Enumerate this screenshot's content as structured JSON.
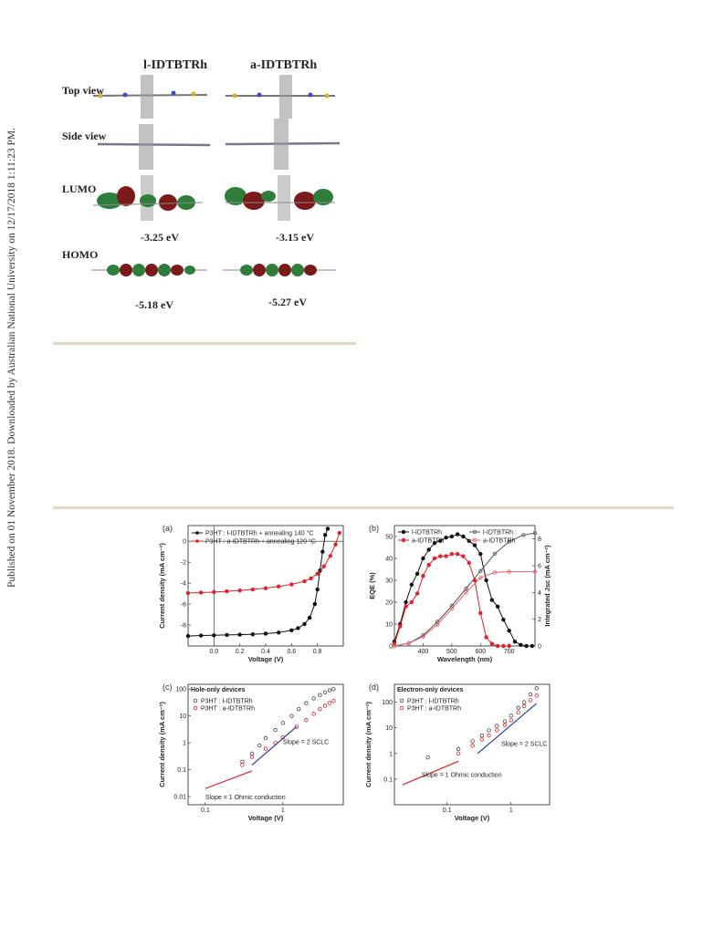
{
  "side_note": "Published on 01 November 2018. Downloaded by Australian National University on 12/17/2018 1:11:23 PM.",
  "mo_figure": {
    "headers": [
      "l-IDTBTRh",
      "a-IDTBTRh"
    ],
    "rows": [
      "Top view",
      "Side view",
      "LUMO",
      "HOMO"
    ],
    "lumo": [
      "-3.25 eV",
      "-3.15 eV"
    ],
    "homo": [
      "-5.18 eV",
      "-5.27 eV"
    ]
  },
  "chart_data": [
    {
      "type": "line",
      "panel": "(a)",
      "xlabel": "Voltage (V)",
      "ylabel": "Current density (mA cm⁻²)",
      "xlim": [
        -0.2,
        1.0
      ],
      "ylim": [
        -10,
        1.5
      ],
      "xticks": [
        "0.0",
        "0.2",
        "0.4",
        "0.6",
        "0.8"
      ],
      "yticks": [
        "-8",
        "-6",
        "-4",
        "-2",
        "0"
      ],
      "legend": "top-left",
      "series": [
        {
          "name": "P3HT : l-IDTBTRh + annealing 140 °C",
          "color": "#111111",
          "x": [
            -0.2,
            -0.1,
            0,
            0.1,
            0.2,
            0.3,
            0.4,
            0.5,
            0.6,
            0.65,
            0.7,
            0.74,
            0.78,
            0.8,
            0.82,
            0.84,
            0.86,
            0.88
          ],
          "y": [
            -9.05,
            -9.0,
            -8.98,
            -8.95,
            -8.92,
            -8.88,
            -8.82,
            -8.72,
            -8.5,
            -8.3,
            -7.9,
            -7.3,
            -6.0,
            -4.6,
            -2.8,
            -1.0,
            0.6,
            1.2
          ]
        },
        {
          "name": "P3HT : a-IDTBTRh + annealing 120 °C",
          "color": "#e0202a",
          "x": [
            -0.2,
            -0.1,
            0,
            0.1,
            0.2,
            0.3,
            0.4,
            0.5,
            0.6,
            0.7,
            0.75,
            0.8,
            0.85,
            0.9,
            0.94,
            0.97
          ],
          "y": [
            -4.95,
            -4.9,
            -4.85,
            -4.78,
            -4.7,
            -4.6,
            -4.48,
            -4.32,
            -4.12,
            -3.82,
            -3.55,
            -3.1,
            -2.4,
            -1.4,
            -0.3,
            0.8
          ]
        }
      ]
    },
    {
      "type": "line",
      "panel": "(b)",
      "xlabel": "Wavelength (nm)",
      "ylabel": "EQE (%)",
      "y2label": "Integrated Jsc (mA cm⁻²)",
      "xlim": [
        300,
        790
      ],
      "ylim": [
        0,
        55
      ],
      "y2lim": [
        0,
        9
      ],
      "xticks": [
        "400",
        "500",
        "600",
        "700"
      ],
      "yticks": [
        "0",
        "10",
        "20",
        "30",
        "40",
        "50"
      ],
      "y2ticks": [
        "0",
        "2",
        "4",
        "6",
        "8"
      ],
      "series": [
        {
          "name": "l-IDTBTRh",
          "axis": "left",
          "color": "#111111",
          "x": [
            300,
            320,
            340,
            360,
            380,
            400,
            420,
            440,
            460,
            480,
            500,
            520,
            540,
            560,
            580,
            600,
            620,
            640,
            660,
            680,
            700,
            720,
            740,
            760,
            780
          ],
          "y": [
            2,
            10,
            20,
            28,
            33,
            40,
            44,
            47,
            48,
            49.5,
            50,
            51,
            50,
            48,
            46,
            42,
            30,
            21,
            18,
            12,
            7,
            2,
            0.5,
            0,
            0
          ]
        },
        {
          "name": "a-IDTBTRh",
          "axis": "left",
          "color": "#e0202a",
          "x": [
            300,
            320,
            340,
            360,
            380,
            400,
            420,
            440,
            460,
            480,
            500,
            520,
            540,
            560,
            580,
            600,
            620,
            640,
            660,
            680,
            700
          ],
          "y": [
            1,
            9,
            18,
            20,
            24,
            32,
            37,
            40,
            41,
            41,
            42,
            42,
            41,
            38,
            30,
            15,
            4,
            1,
            0,
            0,
            0
          ]
        },
        {
          "name": "l-IDTBTRh",
          "axis": "right",
          "color": "#555555",
          "x": [
            300,
            350,
            400,
            450,
            500,
            550,
            600,
            650,
            700,
            750,
            790
          ],
          "y": [
            0,
            0.2,
            0.8,
            1.8,
            3.0,
            4.3,
            5.6,
            6.9,
            7.8,
            8.3,
            8.45
          ]
        },
        {
          "name": "a-IDTBTRh",
          "axis": "right",
          "color": "#e0606a",
          "x": [
            300,
            350,
            400,
            450,
            500,
            550,
            600,
            650,
            700,
            790
          ],
          "y": [
            0,
            0.2,
            0.7,
            1.6,
            2.8,
            4.0,
            5.1,
            5.5,
            5.55,
            5.55
          ]
        }
      ]
    },
    {
      "type": "scatter",
      "panel": "(c)",
      "title": "Hole-only devices",
      "xlabel": "Voltage (V)",
      "ylabel": "Current density (mA cm⁻²)",
      "xscale": "log",
      "yscale": "log",
      "xlim": [
        0.06,
        6
      ],
      "ylim": [
        0.005,
        150
      ],
      "xticks": [
        "0.1",
        "1"
      ],
      "yticks": [
        "0.01",
        "0.1",
        "1",
        "10",
        "100"
      ],
      "series": [
        {
          "name": "P3HT : l-IDTBTRh",
          "color": "#444444",
          "x": [
            0.3,
            0.4,
            0.5,
            0.6,
            0.8,
            1.0,
            1.3,
            1.6,
            2.0,
            2.5,
            3.0,
            3.5,
            4.0,
            4.5
          ],
          "y": [
            0.2,
            0.4,
            0.8,
            1.5,
            3,
            5.5,
            10,
            18,
            30,
            45,
            60,
            75,
            90,
            100
          ]
        },
        {
          "name": "P3HT : a-IDTBTRh",
          "color": "#e0202a",
          "x": [
            0.3,
            0.4,
            0.6,
            0.8,
            1.0,
            1.5,
            2.0,
            2.5,
            3.0,
            3.5,
            4.0,
            4.5
          ],
          "y": [
            0.15,
            0.3,
            0.6,
            1.0,
            1.6,
            4,
            7,
            12,
            18,
            24,
            30,
            36
          ]
        }
      ],
      "annotations": [
        "Slope = 2  SCLC",
        "Slope = 1  Ohmic conduction"
      ]
    },
    {
      "type": "scatter",
      "panel": "(d)",
      "title": "Electron-only devices",
      "xlabel": "Voltage (V)",
      "ylabel": "Current density (mA cm⁻²)",
      "xscale": "log",
      "yscale": "log",
      "xlim": [
        0.015,
        4
      ],
      "ylim": [
        0.01,
        500
      ],
      "xticks": [
        "0.1",
        "1"
      ],
      "yticks": [
        "0.1",
        "1",
        "10",
        "100"
      ],
      "series": [
        {
          "name": "P3HT : l-IDTBTRh",
          "color": "#444444",
          "x": [
            0.05,
            0.15,
            0.25,
            0.35,
            0.45,
            0.6,
            0.8,
            1.0,
            1.3,
            1.6,
            2.0,
            2.5
          ],
          "y": [
            0.7,
            1.5,
            3,
            5,
            8,
            12,
            18,
            30,
            60,
            100,
            200,
            350
          ]
        },
        {
          "name": "P3HT : a-IDTBTRh",
          "color": "#e0202a",
          "x": [
            0.15,
            0.25,
            0.35,
            0.45,
            0.6,
            0.8,
            1.0,
            1.3,
            1.6,
            2.0,
            2.5
          ],
          "y": [
            1.0,
            2,
            3.5,
            5,
            8,
            13,
            20,
            40,
            70,
            120,
            180
          ]
        }
      ],
      "annotations": [
        "Slope = 2  SCLC",
        "Slope = 1  Ohmic conduction"
      ]
    }
  ]
}
